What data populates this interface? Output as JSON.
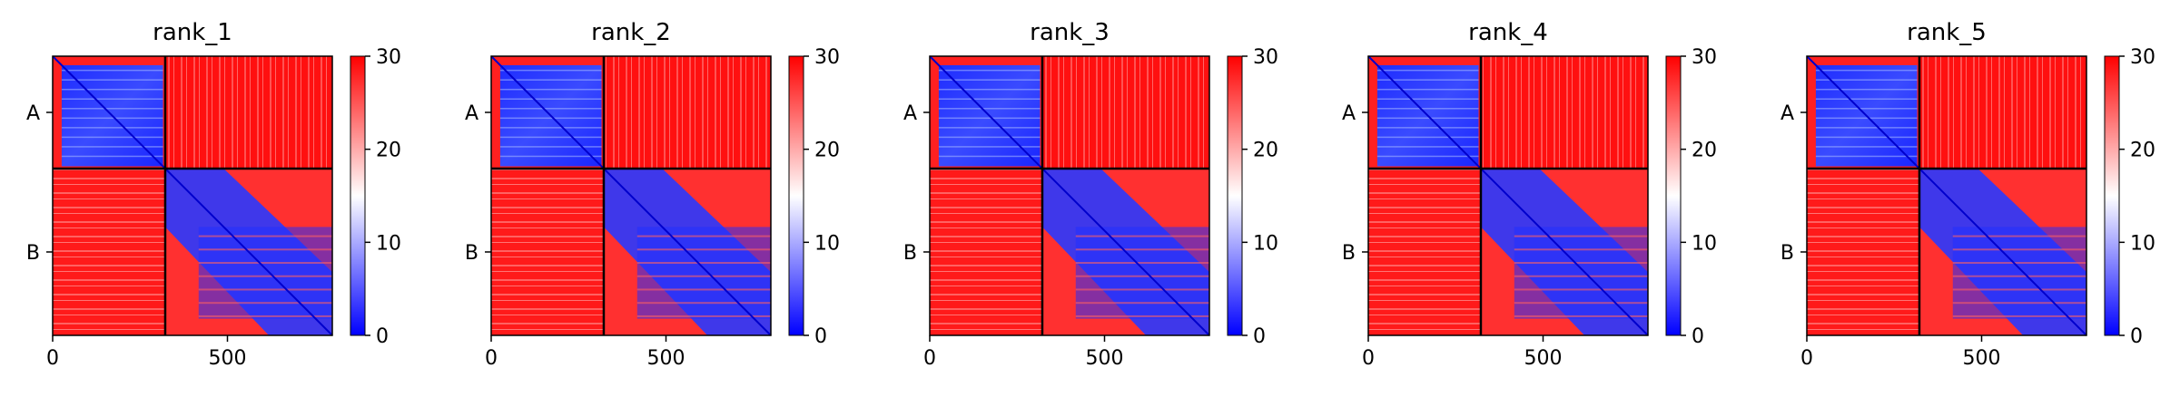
{
  "chart_data": [
    {
      "type": "heatmap",
      "title": "rank_1",
      "chains": [
        "A",
        "B"
      ],
      "chain_boundary": 322,
      "n_residues": 800,
      "xticks": [
        0,
        500
      ],
      "xlim": [
        0,
        800
      ],
      "colorbar": {
        "ticks": [
          0,
          10,
          20,
          30
        ],
        "range": [
          0,
          30
        ],
        "colors": [
          "#0000ff",
          "#ffffff",
          "#ff0000"
        ]
      }
    },
    {
      "type": "heatmap",
      "title": "rank_2",
      "chains": [
        "A",
        "B"
      ],
      "chain_boundary": 322,
      "n_residues": 800,
      "xticks": [
        0,
        500
      ],
      "xlim": [
        0,
        800
      ],
      "colorbar": {
        "ticks": [
          0,
          10,
          20,
          30
        ],
        "range": [
          0,
          30
        ],
        "colors": [
          "#0000ff",
          "#ffffff",
          "#ff0000"
        ]
      }
    },
    {
      "type": "heatmap",
      "title": "rank_3",
      "chains": [
        "A",
        "B"
      ],
      "chain_boundary": 322,
      "n_residues": 800,
      "xticks": [
        0,
        500
      ],
      "xlim": [
        0,
        800
      ],
      "colorbar": {
        "ticks": [
          0,
          10,
          20,
          30
        ],
        "range": [
          0,
          30
        ],
        "colors": [
          "#0000ff",
          "#ffffff",
          "#ff0000"
        ]
      }
    },
    {
      "type": "heatmap",
      "title": "rank_4",
      "chains": [
        "A",
        "B"
      ],
      "chain_boundary": 322,
      "n_residues": 800,
      "xticks": [
        0,
        500
      ],
      "xlim": [
        0,
        800
      ],
      "colorbar": {
        "ticks": [
          0,
          10,
          20,
          30
        ],
        "range": [
          0,
          30
        ],
        "colors": [
          "#0000ff",
          "#ffffff",
          "#ff0000"
        ]
      }
    },
    {
      "type": "heatmap",
      "title": "rank_5",
      "chains": [
        "A",
        "B"
      ],
      "chain_boundary": 322,
      "n_residues": 800,
      "xticks": [
        0,
        500
      ],
      "xlim": [
        0,
        800
      ],
      "colorbar": {
        "ticks": [
          0,
          10,
          20,
          30
        ],
        "range": [
          0,
          30
        ],
        "colors": [
          "#0000ff",
          "#ffffff",
          "#ff0000"
        ]
      }
    }
  ]
}
